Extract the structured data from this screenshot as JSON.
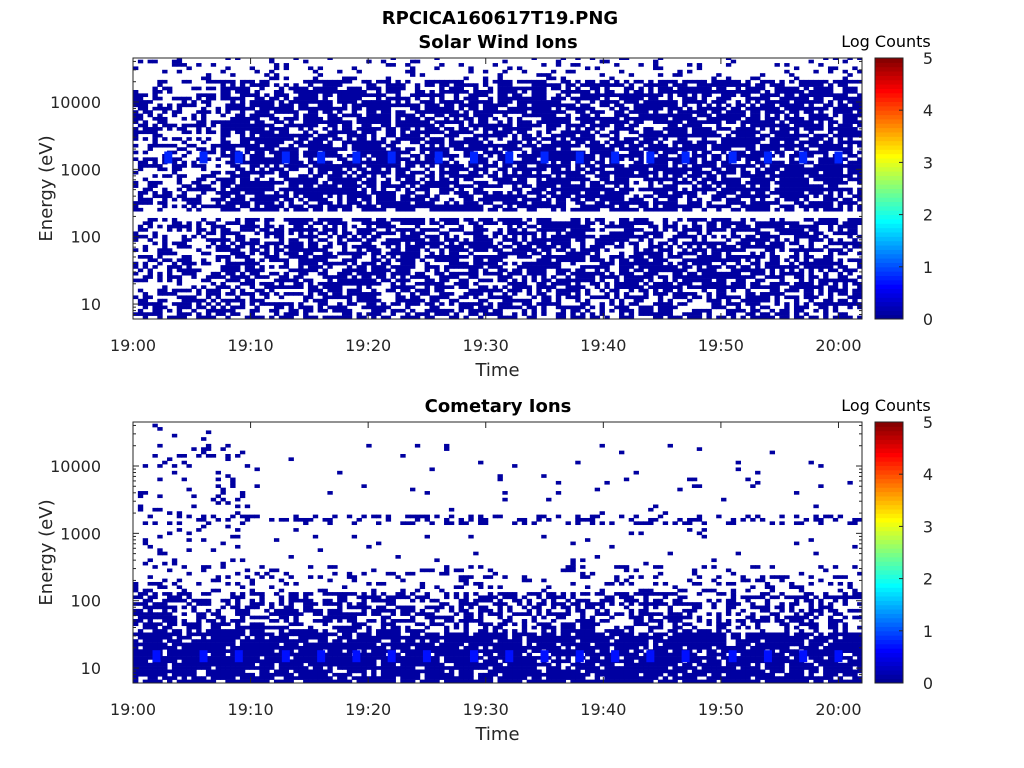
{
  "figure_title": "RPCICA160617T19.PNG",
  "colors": {
    "axis": "#262626",
    "background": "#ffffff",
    "colormap": [
      "#00008f",
      "#0000ff",
      "#0080ff",
      "#00ffff",
      "#80ff80",
      "#ffff00",
      "#ff8000",
      "#ff0000",
      "#800000"
    ]
  },
  "chart_data": [
    {
      "type": "heatmap",
      "title": "Solar Wind Ions",
      "xlabel": "Time",
      "ylabel": "Energy (eV)",
      "x_ticks": [
        "19:00",
        "19:10",
        "19:20",
        "19:30",
        "19:40",
        "19:50",
        "20:00"
      ],
      "y_ticks": [
        "10",
        "100",
        "1000",
        "10000"
      ],
      "y_scale": "log",
      "ylim": [
        6,
        45000
      ],
      "xlim": [
        "19:00",
        "20:02"
      ],
      "colorbar": {
        "label": "Log Counts",
        "ticks": [
          "0",
          "1",
          "2",
          "3",
          "4",
          "5"
        ],
        "range": [
          0,
          5
        ]
      },
      "features": [
        {
          "energy_ev": 1500,
          "times": [
            "19:03",
            "19:06",
            "19:09",
            "19:13",
            "19:16",
            "19:19",
            "19:22",
            "19:26",
            "19:29",
            "19:32",
            "19:35",
            "19:38",
            "19:41",
            "19:44",
            "19:47",
            "19:51",
            "19:54",
            "19:57",
            "20:00"
          ],
          "log_counts": 0.8
        }
      ],
      "background_level": 0.1,
      "note": ""
    },
    {
      "type": "heatmap",
      "title": "Cometary Ions",
      "xlabel": "Time",
      "ylabel": "Energy (eV)",
      "x_ticks": [
        "19:00",
        "19:10",
        "19:20",
        "19:30",
        "19:40",
        "19:50",
        "20:00"
      ],
      "y_ticks": [
        "10",
        "100",
        "1000",
        "10000"
      ],
      "y_scale": "log",
      "ylim": [
        6,
        45000
      ],
      "xlim": [
        "19:00",
        "20:02"
      ],
      "colorbar": {
        "label": "Log Counts",
        "ticks": [
          "0",
          "1",
          "2",
          "3",
          "4",
          "5"
        ],
        "range": [
          0,
          5
        ]
      },
      "features": [
        {
          "energy_ev": 15,
          "times": [
            "19:02",
            "19:06",
            "19:09",
            "19:13",
            "19:16",
            "19:19",
            "19:22",
            "19:25",
            "19:29",
            "19:32",
            "19:35",
            "19:38",
            "19:41",
            "19:44",
            "19:47",
            "19:51",
            "19:54",
            "19:57",
            "20:00"
          ],
          "log_counts": 0.7
        }
      ],
      "background_level": 0.1,
      "note": ""
    }
  ]
}
